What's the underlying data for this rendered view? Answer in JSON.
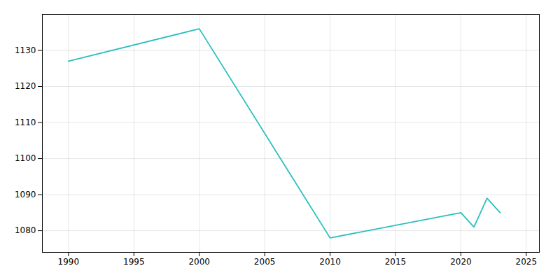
{
  "chart_data": {
    "type": "line",
    "x": [
      1990,
      2000,
      2010,
      2020,
      2021,
      2022,
      2023
    ],
    "values": [
      1127,
      1136,
      1078,
      1085,
      1081,
      1089,
      1085
    ],
    "color": "#2abfbf",
    "xlim": [
      1988,
      2026
    ],
    "ylim": [
      1074,
      1140
    ],
    "xticks": [
      1990,
      1995,
      2000,
      2005,
      2010,
      2015,
      2020,
      2025
    ],
    "yticks": [
      1080,
      1090,
      1100,
      1110,
      1120,
      1130
    ],
    "grid": true
  }
}
